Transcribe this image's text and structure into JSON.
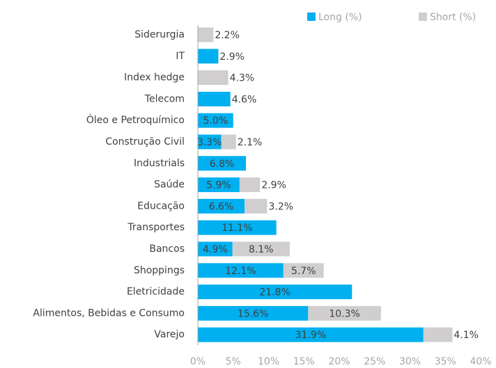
{
  "chart_data": {
    "type": "stacked-bar-horizontal",
    "categories": [
      "Siderurgia",
      "IT",
      "Index hedge",
      "Telecom",
      "Óleo e Petroquímico",
      "Construção Civil",
      "Industrials",
      "Saúde",
      "Educação",
      "Transportes",
      "Bancos",
      "Shoppings",
      "Eletricidade",
      "Alimentos, Bebidas e Consumo",
      "Varejo"
    ],
    "series": [
      {
        "name": "Long (%)",
        "color": "#00b0f0",
        "values": [
          null,
          2.9,
          null,
          4.6,
          5.0,
          3.3,
          6.8,
          5.9,
          6.6,
          11.1,
          4.9,
          12.1,
          21.8,
          15.6,
          31.9
        ],
        "value_labels": [
          null,
          "2.9%",
          null,
          "4.6%",
          "5.0%",
          "3.3%",
          "6.8%",
          "5.9%",
          "6.6%",
          "11.1%",
          "4.9%",
          "12.1%",
          "21.8%",
          "15.6%",
          "31.9%"
        ]
      },
      {
        "name": "Short (%)",
        "color": "#d0cece",
        "values": [
          2.2,
          null,
          4.3,
          null,
          null,
          2.1,
          null,
          2.9,
          3.2,
          null,
          8.1,
          5.7,
          null,
          10.3,
          4.1
        ],
        "value_labels": [
          "2.2%",
          null,
          "4.3%",
          null,
          null,
          "2.1%",
          null,
          "2.9%",
          "3.2%",
          null,
          "8.1%",
          "5.7%",
          null,
          "10.3%",
          "4.1%"
        ]
      }
    ],
    "xlim": [
      0,
      40
    ],
    "xticks": [
      {
        "value": 0,
        "label": "0%"
      },
      {
        "value": 5,
        "label": "5%"
      },
      {
        "value": 10,
        "label": "10%"
      },
      {
        "value": 15,
        "label": "15%"
      },
      {
        "value": 20,
        "label": "20%"
      },
      {
        "value": 25,
        "label": "25%"
      },
      {
        "value": 30,
        "label": "30%"
      },
      {
        "value": 35,
        "label": "35%"
      },
      {
        "value": 40,
        "label": "40%"
      }
    ],
    "legend": "top-right"
  }
}
